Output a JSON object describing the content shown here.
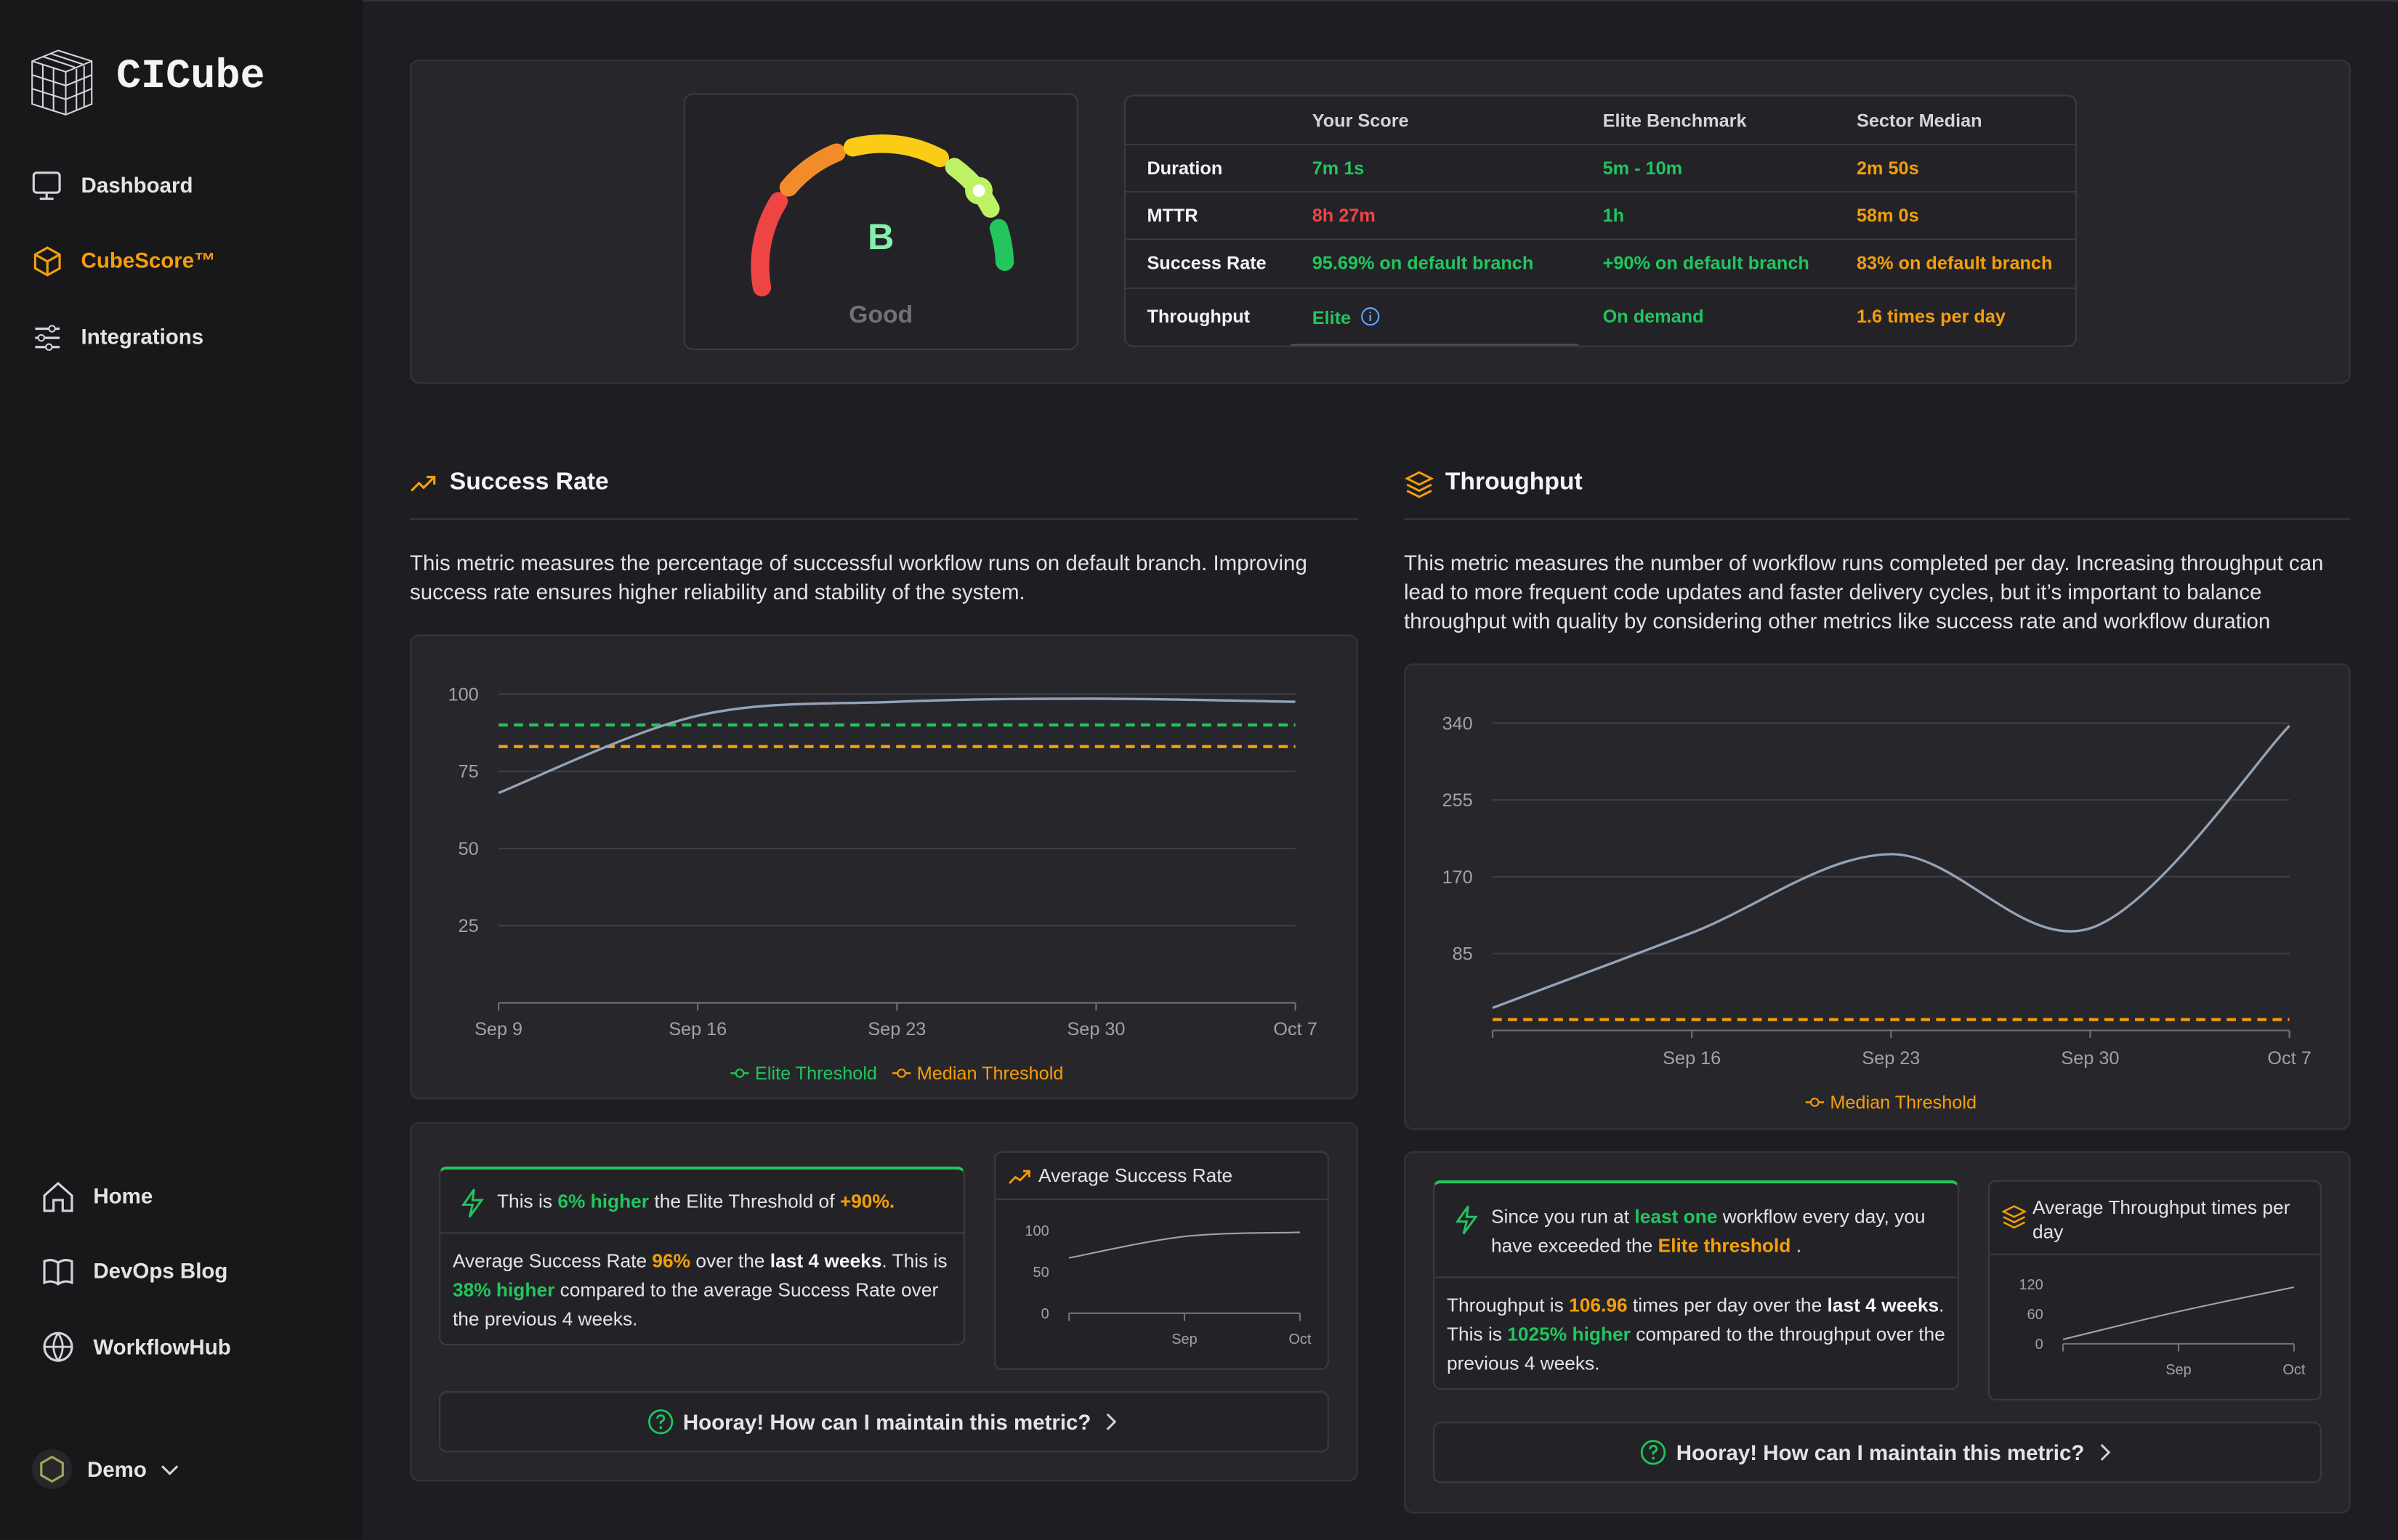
{
  "sidebar": {
    "brand": "CICube",
    "nav": [
      "Dashboard",
      "CubeScore™",
      "Integrations"
    ],
    "footer_nav": [
      "Home",
      "DevOps Blog",
      "WorkflowHub"
    ],
    "account": "Demo"
  },
  "cubescore": {
    "grade": "B",
    "rating": "Good",
    "table": {
      "headers": [
        "Your Score",
        "Elite Benchmark",
        "Sector Median"
      ],
      "rows": [
        {
          "metric": "Duration",
          "cells": [
            "7m 1s",
            "5m - 10m",
            "2m 50s"
          ]
        },
        {
          "metric": "MTTR",
          "cells": [
            "8h 27m",
            "1h",
            "58m 0s"
          ]
        },
        {
          "metric": "Success Rate",
          "cells": [
            "95.69% on default branch",
            "+90% on default branch",
            "83% on default branch"
          ]
        },
        {
          "metric": "Throughput",
          "cells": [
            "Elite",
            "On demand",
            "1.6 times per day"
          ]
        }
      ]
    }
  },
  "success_rate": {
    "title": "Success Rate",
    "description": "This metric measures the percentage of successful workflow runs on default branch. Improving success rate ensures higher reliability and stability of the system.",
    "chart_data": {
      "type": "line",
      "categories": [
        "Sep 9",
        "Sep 16",
        "Sep 23",
        "Sep 30",
        "Oct 7"
      ],
      "values": [
        68,
        93,
        97.5,
        98.5,
        97.5
      ],
      "color": "#94a3b8",
      "ylim": [
        0,
        100
      ],
      "yticks": [
        25,
        50,
        75,
        100
      ],
      "grid": true,
      "thresholds": [
        {
          "name": "Elite Threshold",
          "color": "#22c55e",
          "value": 90
        },
        {
          "name": "Median Threshold",
          "color": "#f59e0b",
          "value": 83
        }
      ]
    },
    "insight": {
      "headline": [
        "This is ",
        "6% higher",
        " the Elite Threshold of ",
        "+90%."
      ],
      "body": [
        "Average Success Rate ",
        "96%",
        " over the ",
        "last 4 weeks",
        ". This is ",
        "38% higher",
        " compared to the average Success Rate over the previous 4 weeks."
      ]
    },
    "mini_chart": {
      "title": "Average Success Rate",
      "chart_data": {
        "type": "line",
        "categories": [
          null,
          "Sep",
          "Oct"
        ],
        "values": [
          67,
          93,
          98
        ],
        "color": "#a1a1aa",
        "ylim": [
          0,
          100
        ],
        "yticks": [
          0,
          50,
          100
        ],
        "grid": false
      }
    },
    "cta": "Hooray! How can I maintain this metric?"
  },
  "throughput": {
    "title": "Throughput",
    "description": "This metric measures the number of workflow runs completed per day. Increasing throughput can lead to more frequent code updates and faster delivery cycles, but it’s important to balance throughput with quality by considering other metrics like success rate and workflow duration",
    "chart_data": {
      "type": "line",
      "categories": [
        null,
        "Sep 16",
        "Sep 23",
        "Sep 30",
        "Oct 7"
      ],
      "values": [
        25,
        108,
        195,
        113,
        337
      ],
      "color": "#94a3b8",
      "ylim": [
        0,
        340
      ],
      "yticks": [
        85,
        170,
        255,
        340
      ],
      "grid": true,
      "thresholds": [
        {
          "name": "Median Threshold",
          "color": "#f59e0b",
          "value": 12
        }
      ]
    },
    "insight": {
      "headline": [
        "Since you run at ",
        "least one",
        " workflow every day, you have exceeded the ",
        "Elite threshold",
        " ."
      ],
      "body": [
        "Throughput is ",
        "106.96",
        " times per day over the ",
        "last 4 weeks",
        ". This is ",
        "1025% higher",
        " compared to the throughput over the previous 4 weeks."
      ]
    },
    "mini_chart": {
      "title": "Average Throughput times per day",
      "chart_data": {
        "type": "line",
        "categories": [
          null,
          "Sep",
          "Oct"
        ],
        "values": [
          9,
          65,
          114
        ],
        "color": "#a1a1aa",
        "ylim": [
          0,
          120
        ],
        "yticks": [
          0,
          60,
          120
        ],
        "grid": false
      }
    },
    "cta": "Hooray! How can I maintain this metric?"
  }
}
